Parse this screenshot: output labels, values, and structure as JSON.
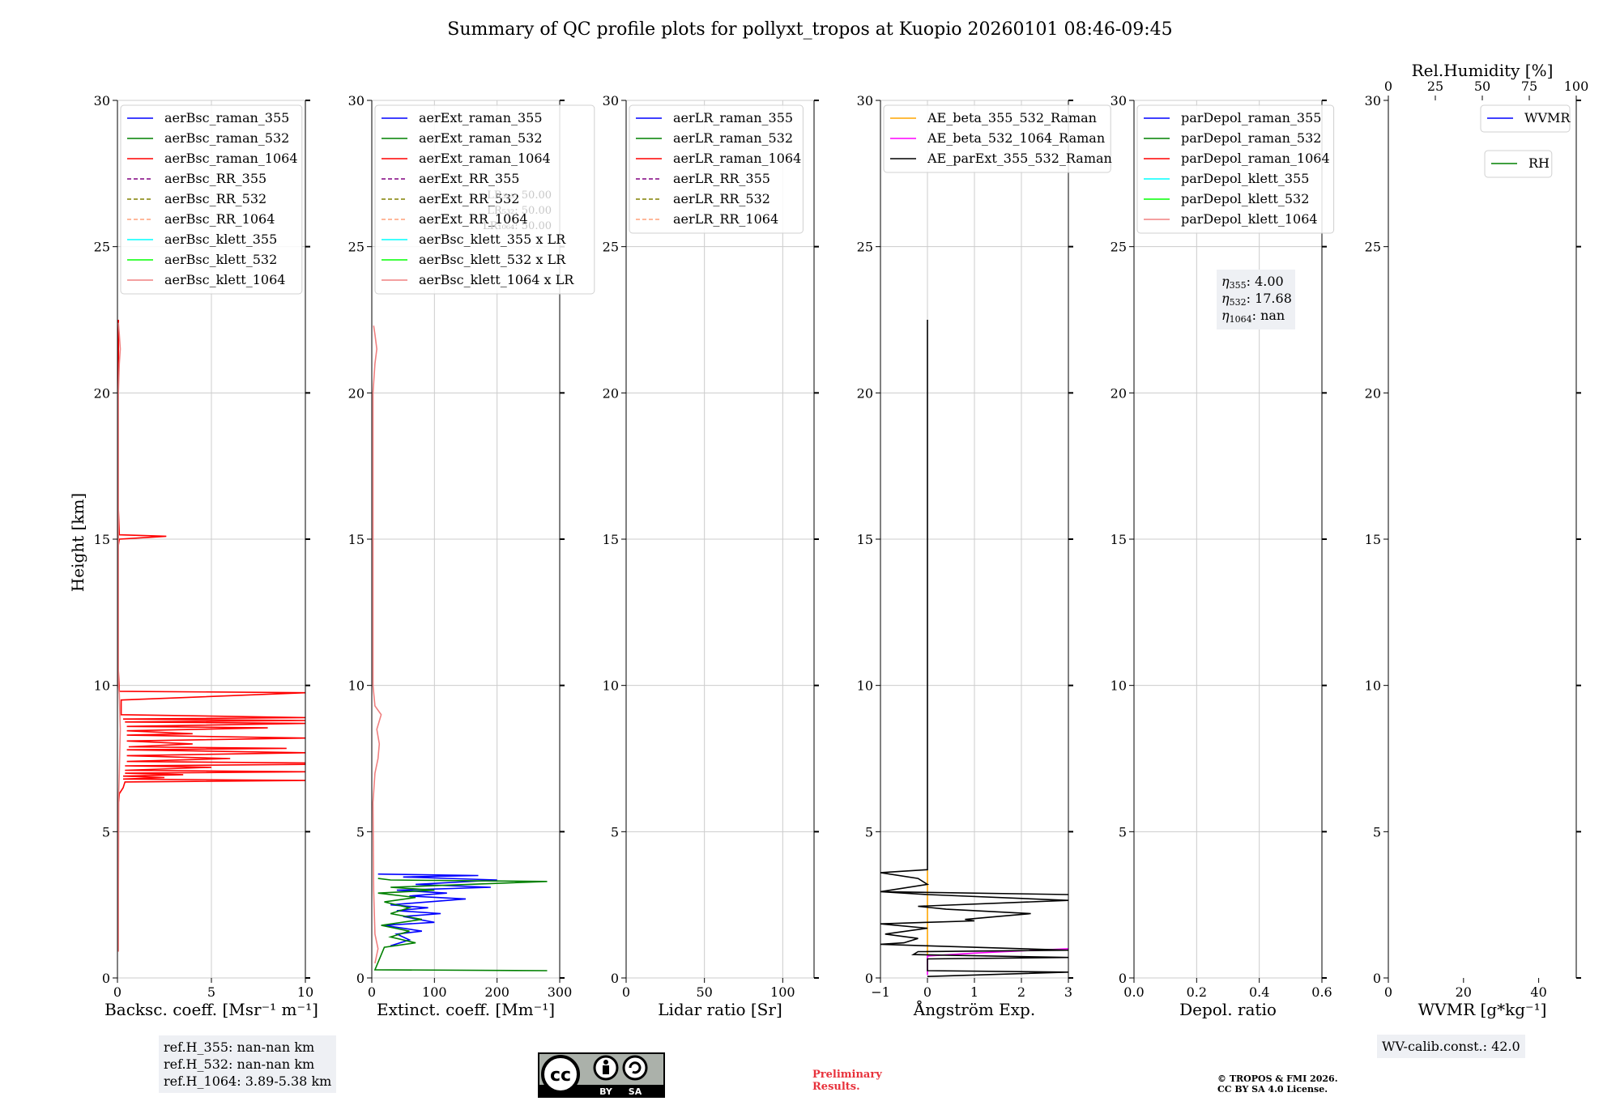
{
  "title": "Summary of QC profile plots for pollyxt_tropos at Kuopio 20260101 08:46-09:45",
  "colors": {
    "blue": "#0000ff",
    "green": "#008000",
    "red": "#ff0000",
    "purple": "#800080",
    "olive": "#808000",
    "salmon": "#ffa07a",
    "cyan": "#00ffff",
    "lime": "#00ff00",
    "lightcoral": "#f08080",
    "orange": "#ffa500",
    "magenta": "#ff00ff",
    "black": "#000000",
    "grid": "#cccccc",
    "infobox": "#eef0f4"
  },
  "chart_data": [
    {
      "type": "line",
      "ylabel": "Height [km]",
      "xlabel": "Backsc. coeff. [Msr⁻¹ m⁻¹]",
      "xlim": [
        0,
        10
      ],
      "ylim": [
        0,
        30
      ],
      "xticks": [
        "0",
        "5",
        "10"
      ],
      "yticks": [
        "0",
        "5",
        "10",
        "15",
        "20",
        "25",
        "30"
      ],
      "grid": true,
      "legend": {
        "position": "top",
        "entries": [
          {
            "label": "aerBsc_raman_355",
            "color": "#0000ff",
            "dashed": false
          },
          {
            "label": "aerBsc_raman_532",
            "color": "#008000",
            "dashed": false
          },
          {
            "label": "aerBsc_raman_1064",
            "color": "#ff0000",
            "dashed": false
          },
          {
            "label": "aerBsc_RR_355",
            "color": "#800080",
            "dashed": true
          },
          {
            "label": "aerBsc_RR_532",
            "color": "#808000",
            "dashed": true
          },
          {
            "label": "aerBsc_RR_1064",
            "color": "#ffa07a",
            "dashed": true
          },
          {
            "label": "aerBsc_klett_355",
            "color": "#00ffff",
            "dashed": false
          },
          {
            "label": "aerBsc_klett_532",
            "color": "#00ff00",
            "dashed": false
          },
          {
            "label": "aerBsc_klett_1064",
            "color": "#f08080",
            "dashed": false
          }
        ]
      },
      "series": [
        {
          "name": "aerBsc_raman_1064",
          "color": "#ff0000",
          "points": [
            [
              0.05,
              0.9
            ],
            [
              0.05,
              3
            ],
            [
              0.06,
              6
            ],
            [
              0.1,
              6.3
            ],
            [
              0.3,
              6.5
            ],
            [
              0.4,
              6.7
            ],
            [
              10,
              6.75
            ],
            [
              0.3,
              6.8
            ],
            [
              2.5,
              6.85
            ],
            [
              0.3,
              6.9
            ],
            [
              3.5,
              6.95
            ],
            [
              0.4,
              7.0
            ],
            [
              10,
              7.05
            ],
            [
              0.4,
              7.1
            ],
            [
              5,
              7.2
            ],
            [
              0.4,
              7.25
            ],
            [
              10,
              7.3
            ],
            [
              10,
              7.35
            ],
            [
              0.5,
              7.4
            ],
            [
              6,
              7.5
            ],
            [
              0.5,
              7.6
            ],
            [
              10,
              7.7
            ],
            [
              0.5,
              7.8
            ],
            [
              9,
              7.85
            ],
            [
              0.6,
              7.9
            ],
            [
              4,
              8.0
            ],
            [
              0.5,
              8.1
            ],
            [
              10,
              8.2
            ],
            [
              0.5,
              8.3
            ],
            [
              4,
              8.35
            ],
            [
              0.5,
              8.45
            ],
            [
              8,
              8.55
            ],
            [
              0.5,
              8.6
            ],
            [
              10,
              8.7
            ],
            [
              0.4,
              8.75
            ],
            [
              10,
              8.8
            ],
            [
              0.3,
              8.85
            ],
            [
              10,
              8.9
            ],
            [
              0.2,
              9.0
            ],
            [
              0.2,
              9.5
            ],
            [
              10,
              9.75
            ],
            [
              0.1,
              9.8
            ],
            [
              0.05,
              10.5
            ],
            [
              0.05,
              14.8
            ],
            [
              0.1,
              15.0
            ],
            [
              2.6,
              15.1
            ],
            [
              0.1,
              15.15
            ],
            [
              0.05,
              16
            ],
            [
              0.05,
              22.5
            ]
          ]
        },
        {
          "name": "aerBsc_klett_1064",
          "color": "#f08080",
          "points": [
            [
              0.05,
              0.9
            ],
            [
              0.05,
              6.0
            ],
            [
              0.1,
              7.0
            ],
            [
              0.15,
              8.5
            ],
            [
              0.1,
              9.7
            ],
            [
              0.05,
              10
            ],
            [
              0.05,
              20
            ],
            [
              0.1,
              21
            ],
            [
              0.15,
              21.5
            ],
            [
              0.1,
              22
            ],
            [
              0.05,
              22.4
            ]
          ]
        }
      ],
      "info_box": [
        "ref.H_355: nan-nan km",
        "ref.H_532: nan-nan km",
        "ref.H_1064: 3.89-5.38 km"
      ]
    },
    {
      "type": "line",
      "xlabel": "Extinct. coeff. [Mm⁻¹]",
      "xlim": [
        0,
        300
      ],
      "ylim": [
        0,
        30
      ],
      "xticks": [
        "0",
        "100",
        "200",
        "300"
      ],
      "yticks": [
        "0",
        "5",
        "10",
        "15",
        "20",
        "25",
        "30"
      ],
      "grid": true,
      "legend": {
        "position": "top",
        "entries": [
          {
            "label": "aerExt_raman_355",
            "color": "#0000ff",
            "dashed": false
          },
          {
            "label": "aerExt_raman_532",
            "color": "#008000",
            "dashed": false
          },
          {
            "label": "aerExt_raman_1064",
            "color": "#ff0000",
            "dashed": false
          },
          {
            "label": "aerExt_RR_355",
            "color": "#800080",
            "dashed": true
          },
          {
            "label": "aerExt_RR_532",
            "color": "#808000",
            "dashed": true
          },
          {
            "label": "aerExt_RR_1064",
            "color": "#ffa07a",
            "dashed": true
          },
          {
            "label": "aerBsc_klett_355 x LR",
            "color": "#00ffff",
            "dashed": false
          },
          {
            "label": "aerBsc_klett_532 x LR",
            "color": "#00ff00",
            "dashed": false
          },
          {
            "label": "aerBsc_klett_1064 x LR",
            "color": "#f08080",
            "dashed": false
          }
        ]
      },
      "faint_annotations": [
        "LR₃₅₅: 50.00",
        "LR₅₃₂: 50.00",
        "LR₁₀₆₄: 50.00"
      ],
      "series": [
        {
          "name": "aerExt_raman_355",
          "color": "#0000ff",
          "points": [
            [
              30,
              1.1
            ],
            [
              60,
              1.3
            ],
            [
              40,
              1.5
            ],
            [
              80,
              1.6
            ],
            [
              20,
              1.8
            ],
            [
              100,
              1.9
            ],
            [
              50,
              2.1
            ],
            [
              110,
              2.2
            ],
            [
              40,
              2.3
            ],
            [
              90,
              2.4
            ],
            [
              30,
              2.5
            ],
            [
              150,
              2.7
            ],
            [
              60,
              2.8
            ],
            [
              120,
              2.9
            ],
            [
              40,
              3.0
            ],
            [
              190,
              3.1
            ],
            [
              70,
              3.2
            ],
            [
              200,
              3.35
            ],
            [
              50,
              3.45
            ],
            [
              170,
              3.5
            ],
            [
              10,
              3.55
            ]
          ]
        },
        {
          "name": "aerExt_raman_532",
          "color": "#008000",
          "points": [
            [
              280,
              0.25
            ],
            [
              5,
              0.28
            ],
            [
              20,
              1.05
            ],
            [
              70,
              1.2
            ],
            [
              30,
              1.4
            ],
            [
              60,
              1.6
            ],
            [
              15,
              1.8
            ],
            [
              80,
              2.0
            ],
            [
              30,
              2.2
            ],
            [
              60,
              2.4
            ],
            [
              20,
              2.6
            ],
            [
              70,
              2.75
            ],
            [
              10,
              2.9
            ],
            [
              100,
              3.0
            ],
            [
              30,
              3.1
            ],
            [
              280,
              3.3
            ],
            [
              30,
              3.35
            ],
            [
              10,
              3.4
            ]
          ]
        },
        {
          "name": "aerBsc_klett_1064 x LR",
          "color": "#f08080",
          "points": [
            [
              5,
              0.5
            ],
            [
              10,
              1.0
            ],
            [
              5,
              1.5
            ],
            [
              3,
              3
            ],
            [
              2,
              6
            ],
            [
              5,
              7
            ],
            [
              10,
              7.5
            ],
            [
              12,
              8
            ],
            [
              8,
              8.5
            ],
            [
              15,
              9
            ],
            [
              5,
              9.3
            ],
            [
              2,
              10
            ],
            [
              2,
              20
            ],
            [
              5,
              21
            ],
            [
              8,
              21.5
            ],
            [
              5,
              22
            ],
            [
              3,
              22.3
            ]
          ]
        }
      ]
    },
    {
      "type": "line",
      "xlabel": "Lidar ratio [Sr]",
      "xlim": [
        0,
        120
      ],
      "ylim": [
        0,
        30
      ],
      "xticks": [
        "0",
        "50",
        "100"
      ],
      "yticks": [
        "0",
        "5",
        "10",
        "15",
        "20",
        "25",
        "30"
      ],
      "grid": true,
      "legend": {
        "position": "top",
        "entries": [
          {
            "label": "aerLR_raman_355",
            "color": "#0000ff",
            "dashed": false
          },
          {
            "label": "aerLR_raman_532",
            "color": "#008000",
            "dashed": false
          },
          {
            "label": "aerLR_raman_1064",
            "color": "#ff0000",
            "dashed": false
          },
          {
            "label": "aerLR_RR_355",
            "color": "#800080",
            "dashed": true
          },
          {
            "label": "aerLR_RR_532",
            "color": "#808000",
            "dashed": true
          },
          {
            "label": "aerLR_RR_1064",
            "color": "#ffa07a",
            "dashed": true
          }
        ]
      },
      "series": []
    },
    {
      "type": "line",
      "xlabel": "Ångström Exp.",
      "xlim": [
        -1,
        3
      ],
      "ylim": [
        0,
        30
      ],
      "xticks": [
        "−1",
        "0",
        "1",
        "2",
        "3"
      ],
      "yticks": [
        "0",
        "5",
        "10",
        "15",
        "20",
        "25",
        "30"
      ],
      "grid": true,
      "legend": {
        "position": "top",
        "entries": [
          {
            "label": "AE_beta_355_532_Raman",
            "color": "#ffa500",
            "dashed": false
          },
          {
            "label": "AE_beta_532_1064_Raman",
            "color": "#ff00ff",
            "dashed": false
          },
          {
            "label": "AE_parExt_355_532_Raman",
            "color": "#000000",
            "dashed": false
          }
        ]
      },
      "series": [
        {
          "name": "AE_beta_355_532_Raman",
          "color": "#ffa500",
          "points": [
            [
              0,
              0.8
            ],
            [
              0,
              3.7
            ]
          ]
        },
        {
          "name": "AE_beta_532_1064_Raman",
          "color": "#ff00ff",
          "points": [
            [
              0,
              0.1
            ],
            [
              0,
              0.75
            ],
            [
              1,
              0.85
            ],
            [
              3,
              1.0
            ]
          ]
        },
        {
          "name": "AE_parExt_355_532_Raman",
          "color": "#000000",
          "points": [
            [
              0,
              0.05
            ],
            [
              3,
              0.2
            ],
            [
              0,
              0.25
            ],
            [
              0,
              0.65
            ],
            [
              3,
              0.7
            ],
            [
              -0.3,
              0.8
            ],
            [
              -0.2,
              0.9
            ],
            [
              3,
              0.95
            ],
            [
              0,
              1.1
            ],
            [
              -1,
              1.15
            ],
            [
              -0.5,
              1.2
            ],
            [
              -0.2,
              1.35
            ],
            [
              -0.9,
              1.5
            ],
            [
              0,
              1.7
            ],
            [
              -1,
              1.85
            ],
            [
              0,
              1.9
            ],
            [
              1,
              1.95
            ],
            [
              0.8,
              2.0
            ],
            [
              1.5,
              2.1
            ],
            [
              2.2,
              2.2
            ],
            [
              0.4,
              2.35
            ],
            [
              -0.2,
              2.45
            ],
            [
              3,
              2.65
            ],
            [
              0,
              2.85
            ],
            [
              -1,
              2.95
            ],
            [
              3,
              2.85
            ],
            [
              -1,
              2.95
            ],
            [
              0,
              3.2
            ],
            [
              -0.2,
              3.4
            ],
            [
              -1,
              3.6
            ],
            [
              0,
              3.7
            ],
            [
              0,
              22.5
            ]
          ]
        }
      ]
    },
    {
      "type": "line",
      "xlabel": "Depol. ratio",
      "xlim": [
        0,
        0.6
      ],
      "ylim": [
        0,
        30
      ],
      "xticks": [
        "0.0",
        "0.2",
        "0.4",
        "0.6"
      ],
      "yticks": [
        "0",
        "5",
        "10",
        "15",
        "20",
        "25",
        "30"
      ],
      "grid": true,
      "legend": {
        "position": "top",
        "entries": [
          {
            "label": "parDepol_raman_355",
            "color": "#0000ff",
            "dashed": false
          },
          {
            "label": "parDepol_raman_532",
            "color": "#008000",
            "dashed": false
          },
          {
            "label": "parDepol_raman_1064",
            "color": "#ff0000",
            "dashed": false
          },
          {
            "label": "parDepol_klett_355",
            "color": "#00ffff",
            "dashed": false
          },
          {
            "label": "parDepol_klett_532",
            "color": "#00ff00",
            "dashed": false
          },
          {
            "label": "parDepol_klett_1064",
            "color": "#f08080",
            "dashed": false
          }
        ]
      },
      "series": [],
      "eta_box": [
        {
          "sub": "355",
          "value": "4.00"
        },
        {
          "sub": "532",
          "value": "17.68"
        },
        {
          "sub": "1064",
          "value": "nan"
        }
      ]
    },
    {
      "type": "line",
      "xlabel": "WVMR [g*kg⁻¹]",
      "xlim": [
        0,
        50
      ],
      "ylim": [
        0,
        30
      ],
      "xticks": [
        "0",
        "20",
        "40"
      ],
      "yticks": [
        "0",
        "5",
        "10",
        "15",
        "20",
        "25",
        "30"
      ],
      "top_xlabel": "Rel.Humidity [%]",
      "top_xlim": [
        0,
        100
      ],
      "top_xticks": [
        "0",
        "25",
        "50",
        "75",
        "100"
      ],
      "grid": false,
      "legend": {
        "position": "top-right",
        "entries": [
          {
            "label": "WVMR",
            "color": "#0000ff",
            "dashed": false
          }
        ]
      },
      "legend2": {
        "position": "top-right",
        "entries": [
          {
            "label": "RH",
            "color": "#008000",
            "dashed": false
          }
        ]
      },
      "series": [],
      "info_box": [
        "WV-calib.const.: 42.0"
      ]
    }
  ],
  "footer": {
    "cc_main": "cc",
    "cc_by": "BY",
    "cc_sa": "SA",
    "preliminary": [
      "Preliminary",
      "Results."
    ],
    "copyright": [
      "© TROPOS & FMI 2026.",
      "CC BY SA 4.0 License."
    ]
  }
}
